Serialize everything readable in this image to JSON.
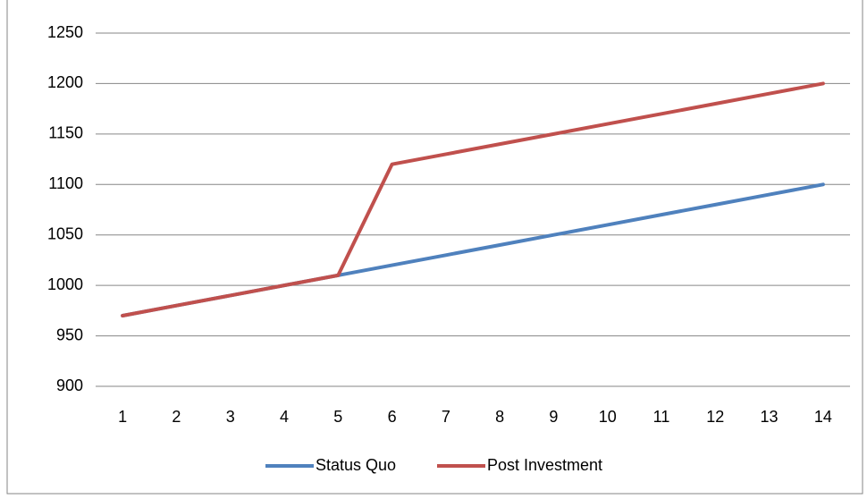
{
  "chart_data": {
    "type": "line",
    "categories": [
      "1",
      "2",
      "3",
      "4",
      "5",
      "6",
      "7",
      "8",
      "9",
      "10",
      "11",
      "12",
      "13",
      "14"
    ],
    "series": [
      {
        "name": "Status Quo",
        "color": "#4f81bd",
        "values": [
          970,
          980,
          990,
          1000,
          1010,
          1020,
          1030,
          1040,
          1050,
          1060,
          1070,
          1080,
          1090,
          1100
        ]
      },
      {
        "name": "Post Investment",
        "color": "#c0504d",
        "values": [
          970,
          980,
          990,
          1000,
          1010,
          1120,
          1130,
          1140,
          1150,
          1160,
          1170,
          1180,
          1190,
          1200
        ]
      }
    ],
    "ylim": [
      900,
      1250
    ],
    "yticks": [
      900,
      950,
      1000,
      1050,
      1100,
      1150,
      1200,
      1250
    ],
    "grid": true,
    "legend": "bottom"
  }
}
